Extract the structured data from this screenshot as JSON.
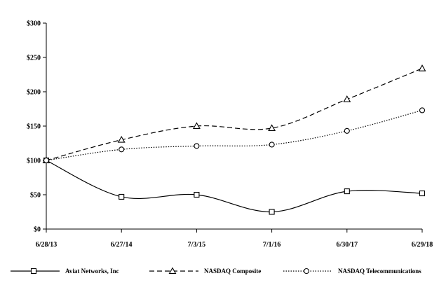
{
  "chart_data": {
    "type": "line",
    "categories": [
      "6/28/13",
      "6/27/14",
      "7/3/15",
      "7/1/16",
      "6/30/17",
      "6/29/18"
    ],
    "y_ticks": [
      "$0",
      "$50",
      "$100",
      "$150",
      "$200",
      "$250",
      "$300"
    ],
    "ylim": [
      0,
      300
    ],
    "series": [
      {
        "name": "Aviat Networks, Inc",
        "values": [
          100,
          47,
          50,
          25,
          55,
          52
        ],
        "line": "solid",
        "marker": "square"
      },
      {
        "name": "NASDAQ Composite",
        "values": [
          100,
          130,
          150,
          147,
          189,
          234
        ],
        "line": "dashed",
        "marker": "triangle"
      },
      {
        "name": "NASDAQ Telecommunications",
        "values": [
          100,
          116,
          121,
          123,
          143,
          173
        ],
        "line": "dotted",
        "marker": "circle"
      }
    ],
    "legend_position": "bottom",
    "grid": false,
    "line_color": "#000000"
  }
}
